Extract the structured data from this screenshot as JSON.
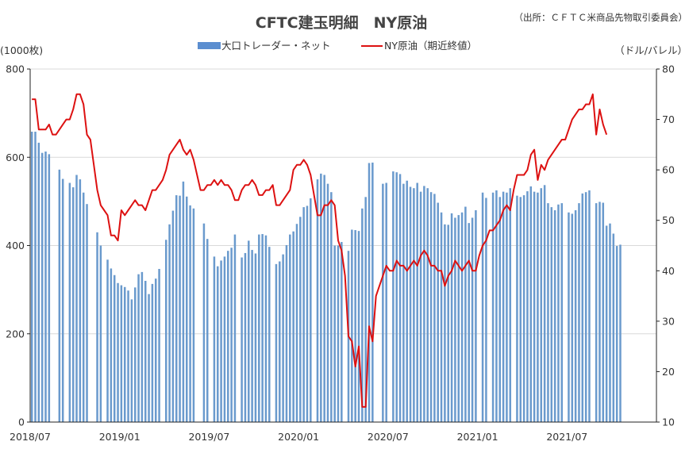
{
  "chart_data": {
    "type": "bar+line",
    "title": "CFTC建玉明細　NY原油",
    "source_note": "（出所：ＣＦＴＣ米商品先物取引委員会）",
    "left_axis_label": "(1000枚)",
    "right_axis_label": "（ドル/バレル）",
    "y_left": {
      "ylim": [
        0,
        800
      ],
      "ticks": [
        0,
        200,
        400,
        600,
        800
      ],
      "tick_labels": [
        "0",
        "200",
        "400",
        "600",
        "800"
      ]
    },
    "y_right": {
      "ylim": [
        10,
        80
      ],
      "ticks": [
        10,
        20,
        30,
        40,
        50,
        60,
        70,
        80
      ],
      "tick_labels": [
        "10",
        "20",
        "30",
        "40",
        "50",
        "60",
        "70",
        "80"
      ]
    },
    "x_tick_labels": [
      "2018/07",
      "2019/01",
      "2019/07",
      "2020/01",
      "2020/07",
      "2021/01",
      "2021/07"
    ],
    "x_tick_weeks": [
      0,
      26,
      52,
      78,
      104,
      130,
      156
    ],
    "x_total_weeks": 182,
    "grid": true,
    "legend_position": "top-center",
    "colors": {
      "bars": "#6A9ACD",
      "bar_legend": "#5B8ED0",
      "line": "#DD1111",
      "grid": "#D9D9D9",
      "axis": "#222222"
    },
    "series": [
      {
        "name": "大口トレーダー・ネット",
        "type": "bar",
        "axis": "left",
        "values": [
          658,
          658,
          633,
          610,
          613,
          607,
          0,
          0,
          572,
          551,
          0,
          542,
          532,
          560,
          550,
          520,
          494,
          0,
          0,
          430,
          400,
          0,
          368,
          348,
          333,
          315,
          310,
          306,
          298,
          278,
          305,
          335,
          340,
          320,
          290,
          313,
          325,
          347,
          0,
          413,
          448,
          479,
          514,
          513,
          545,
          511,
          491,
          484,
          0,
          0,
          450,
          415,
          0,
          375,
          353,
          366,
          375,
          388,
          395,
          425,
          0,
          373,
          383,
          411,
          390,
          382,
          425,
          426,
          423,
          397,
          0,
          358,
          364,
          380,
          401,
          425,
          432,
          449,
          465,
          487,
          490,
          507,
          0,
          550,
          563,
          560,
          540,
          521,
          400,
          400,
          408,
          0,
          388,
          436,
          435,
          433,
          484,
          510,
          587,
          588,
          0,
          0,
          540,
          542,
          0,
          568,
          566,
          562,
          540,
          547,
          533,
          530,
          542,
          522,
          535,
          530,
          521,
          517,
          497,
          475,
          448,
          447,
          473,
          463,
          469,
          475,
          488,
          451,
          463,
          480,
          0,
          520,
          508,
          0,
          520,
          525,
          510,
          522,
          520,
          530,
          0,
          513,
          510,
          514,
          523,
          534,
          522,
          520,
          530,
          537,
          496,
          487,
          480,
          493,
          496,
          0,
          475,
          472,
          480,
          496,
          518,
          521,
          525,
          0,
          496,
          499,
          497,
          445,
          450,
          427,
          399,
          402
        ]
      },
      {
        "name": "NY原油（期近終値）",
        "type": "line",
        "axis": "right",
        "values": [
          74,
          74,
          68,
          68,
          68,
          69,
          67,
          67,
          68,
          69,
          70,
          70,
          72,
          75,
          75,
          73,
          67,
          66,
          61,
          56,
          53,
          52,
          51,
          47,
          47,
          46,
          52,
          51,
          52,
          53,
          54,
          53,
          53,
          52,
          54,
          56,
          56,
          57,
          58,
          60,
          63,
          64,
          65,
          66,
          64,
          63,
          64,
          62,
          59,
          56,
          56,
          57,
          57,
          58,
          57,
          58,
          57,
          57,
          56,
          54,
          54,
          56,
          57,
          57,
          58,
          57,
          55,
          55,
          56,
          56,
          57,
          53,
          53,
          54,
          55,
          56,
          60,
          61,
          61,
          62,
          61,
          59,
          55,
          51,
          51,
          53,
          53,
          54,
          53,
          46,
          44,
          39,
          27,
          26,
          21,
          25,
          13,
          13,
          29,
          26,
          35,
          37,
          39,
          41,
          40,
          40,
          42,
          41,
          41,
          40,
          41,
          42,
          41,
          43,
          44,
          43,
          41,
          41,
          40,
          40,
          37,
          39,
          40,
          42,
          41,
          40,
          41,
          42,
          40,
          40,
          43,
          45,
          46,
          48,
          48,
          49,
          50,
          52,
          53,
          52,
          56,
          59,
          59,
          59,
          60,
          63,
          64,
          58,
          61,
          60,
          62,
          63,
          64,
          65,
          66,
          66,
          68,
          70,
          71,
          72,
          72,
          73,
          73,
          75,
          67,
          72,
          69,
          67
        ]
      }
    ]
  }
}
